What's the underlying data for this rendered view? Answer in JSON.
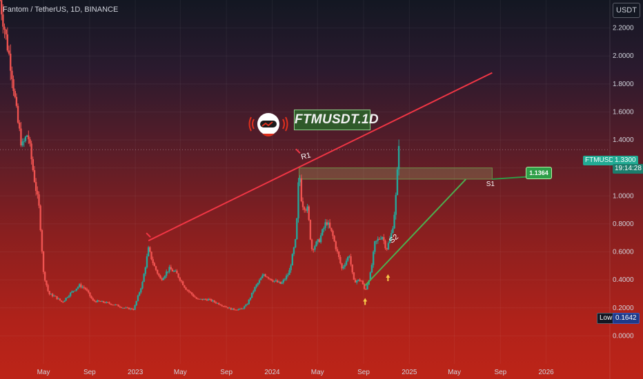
{
  "header": {
    "symbol_line": "Fantom / TetherUS, 1D, BINANCE"
  },
  "currency_button": "USDT",
  "banner_text": "FTMUSDT.1D",
  "price_tag": {
    "symbol": "FTMUSDT",
    "price": "1.3300",
    "timer": "19:14:28"
  },
  "low_tag": {
    "label": "Low",
    "value": "0.1642"
  },
  "note_value": "1.1364",
  "annotations": {
    "r1": "R1",
    "s1": "S1",
    "s2": "S2"
  },
  "colors": {
    "up": "#26a69a",
    "down": "#ef5350",
    "resistance": "#f23645",
    "support": "#4caf50",
    "zone": "#6f8f4a"
  },
  "chart_data": {
    "type": "candlestick",
    "ylim": [
      -0.2,
      2.4
    ],
    "y_ticks": [
      "2.2000",
      "2.0000",
      "1.8000",
      "1.6000",
      "1.4000",
      "1.2000",
      "1.0000",
      "0.8000",
      "0.6000",
      "0.4000",
      "0.2000",
      "0.0000"
    ],
    "y_tick_values": [
      2.2,
      2.0,
      1.8,
      1.6,
      1.4,
      1.2,
      1.0,
      0.8,
      0.6,
      0.4,
      0.2,
      0.0
    ],
    "x_ticks": [
      "May",
      "Sep",
      "2023",
      "May",
      "Sep",
      "2024",
      "May",
      "Sep",
      "2025",
      "May",
      "Sep",
      "2026"
    ],
    "x_tick_dates": [
      "2022-05-01",
      "2022-09-01",
      "2023-01-01",
      "2023-05-01",
      "2023-09-01",
      "2024-01-01",
      "2024-05-01",
      "2024-09-01",
      "2025-01-01",
      "2025-05-01",
      "2025-09-01",
      "2026-01-01"
    ],
    "x_range": [
      "2022-01-05",
      "2026-06-20"
    ],
    "price_path": [
      [
        "2022-01-05",
        2.4
      ],
      [
        "2022-01-20",
        2.15
      ],
      [
        "2022-02-05",
        1.9
      ],
      [
        "2022-02-20",
        1.55
      ],
      [
        "2022-03-05",
        1.35
      ],
      [
        "2022-03-20",
        1.45
      ],
      [
        "2022-04-05",
        1.15
      ],
      [
        "2022-04-20",
        0.9
      ],
      [
        "2022-05-01",
        0.45
      ],
      [
        "2022-05-15",
        0.3
      ],
      [
        "2022-06-01",
        0.28
      ],
      [
        "2022-06-20",
        0.24
      ],
      [
        "2022-07-10",
        0.3
      ],
      [
        "2022-08-05",
        0.36
      ],
      [
        "2022-08-20",
        0.34
      ],
      [
        "2022-09-10",
        0.25
      ],
      [
        "2022-10-10",
        0.24
      ],
      [
        "2022-11-10",
        0.22
      ],
      [
        "2022-12-01",
        0.2
      ],
      [
        "2022-12-28",
        0.19
      ],
      [
        "2023-01-20",
        0.38
      ],
      [
        "2023-02-05",
        0.62
      ],
      [
        "2023-02-20",
        0.5
      ],
      [
        "2023-03-10",
        0.4
      ],
      [
        "2023-04-01",
        0.48
      ],
      [
        "2023-04-20",
        0.45
      ],
      [
        "2023-05-15",
        0.34
      ],
      [
        "2023-06-15",
        0.26
      ],
      [
        "2023-07-15",
        0.26
      ],
      [
        "2023-08-20",
        0.22
      ],
      [
        "2023-09-15",
        0.19
      ],
      [
        "2023-10-10",
        0.19
      ],
      [
        "2023-10-25",
        0.22
      ],
      [
        "2023-11-15",
        0.34
      ],
      [
        "2023-12-10",
        0.44
      ],
      [
        "2024-01-01",
        0.4
      ],
      [
        "2024-01-25",
        0.37
      ],
      [
        "2024-02-15",
        0.45
      ],
      [
        "2024-03-05",
        0.7
      ],
      [
        "2024-03-13",
        1.2
      ],
      [
        "2024-03-20",
        0.95
      ],
      [
        "2024-04-05",
        0.9
      ],
      [
        "2024-04-15",
        0.62
      ],
      [
        "2024-05-05",
        0.68
      ],
      [
        "2024-05-25",
        0.82
      ],
      [
        "2024-06-10",
        0.72
      ],
      [
        "2024-07-05",
        0.48
      ],
      [
        "2024-07-25",
        0.58
      ],
      [
        "2024-08-05",
        0.39
      ],
      [
        "2024-08-25",
        0.4
      ],
      [
        "2024-09-05",
        0.32
      ],
      [
        "2024-09-20",
        0.45
      ],
      [
        "2024-10-01",
        0.66
      ],
      [
        "2024-10-20",
        0.72
      ],
      [
        "2024-11-01",
        0.62
      ],
      [
        "2024-11-12",
        0.7
      ],
      [
        "2024-11-20",
        0.82
      ],
      [
        "2024-11-28",
        1.05
      ],
      [
        "2024-12-04",
        1.39
      ],
      [
        "2024-12-07",
        1.33
      ]
    ],
    "lines": [
      {
        "name": "R1",
        "from": [
          "2023-02-05",
          0.68
        ],
        "to": [
          "2025-08-10",
          1.88
        ],
        "color": "#f23645"
      },
      {
        "name": "S2",
        "from": [
          "2024-09-05",
          0.36
        ],
        "to": [
          "2025-06-01",
          1.12
        ],
        "color": "#4caf50"
      }
    ],
    "zone": {
      "from": "2024-03-13",
      "to": "2025-08-10",
      "low": 1.12,
      "high": 1.2
    },
    "last_price": 1.33,
    "low": 0.1642,
    "markers": [
      {
        "date": "2024-09-05",
        "y": 0.27
      },
      {
        "date": "2024-11-05",
        "y": 0.44
      }
    ]
  }
}
